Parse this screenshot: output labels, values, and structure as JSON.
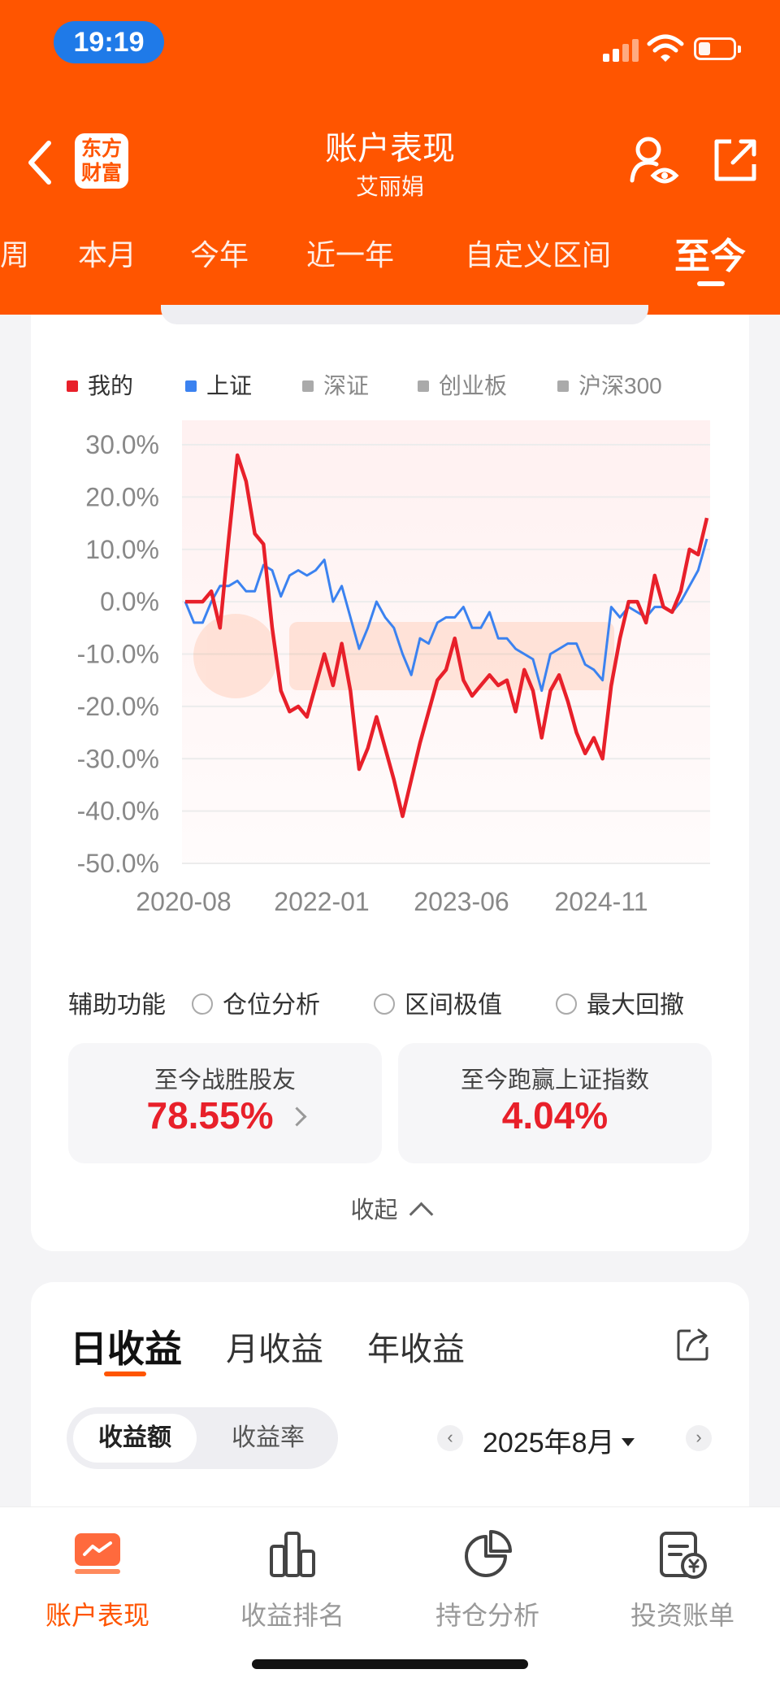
{
  "status_bar": {
    "time": "19:19"
  },
  "header": {
    "logo_line1": "东方",
    "logo_line2": "财富",
    "title": "账户表现",
    "subtitle": "艾丽娟"
  },
  "period_tabs": [
    "周",
    "本月",
    "今年",
    "近一年",
    "自定义区间",
    "至今"
  ],
  "period_tabs_active": "至今",
  "legend": [
    {
      "label": "我的",
      "color": "#e8202a",
      "active": true
    },
    {
      "label": "上证",
      "color": "#3b82f0",
      "active": true
    },
    {
      "label": "深证",
      "color": "#aaaaaa",
      "active": false
    },
    {
      "label": "创业板",
      "color": "#aaaaaa",
      "active": false
    },
    {
      "label": "沪深300",
      "color": "#aaaaaa",
      "active": false
    }
  ],
  "chart_data": {
    "type": "line",
    "y_ticks": [
      "30.0%",
      "20.0%",
      "10.0%",
      "0.0%",
      "-10.0%",
      "-20.0%",
      "-30.0%",
      "-40.0%",
      "-50.0%"
    ],
    "x_ticks": [
      "2020-08",
      "2022-01",
      "2023-06",
      "2024-11"
    ],
    "ylim": [
      -50,
      30
    ],
    "series": [
      {
        "name": "我的",
        "color": "#e8202a",
        "points": [
          [
            0,
            0
          ],
          [
            1,
            0
          ],
          [
            2,
            0
          ],
          [
            3,
            2
          ],
          [
            4,
            -5
          ],
          [
            5,
            12
          ],
          [
            6,
            28
          ],
          [
            7,
            23
          ],
          [
            8,
            13
          ],
          [
            9,
            11
          ],
          [
            10,
            -5
          ],
          [
            11,
            -17
          ],
          [
            12,
            -21
          ],
          [
            13,
            -20
          ],
          [
            14,
            -22
          ],
          [
            15,
            -16
          ],
          [
            16,
            -10
          ],
          [
            17,
            -16
          ],
          [
            18,
            -8
          ],
          [
            19,
            -17
          ],
          [
            20,
            -32
          ],
          [
            21,
            -28
          ],
          [
            22,
            -22
          ],
          [
            23,
            -28
          ],
          [
            24,
            -34
          ],
          [
            25,
            -41
          ],
          [
            26,
            -34
          ],
          [
            27,
            -27
          ],
          [
            28,
            -21
          ],
          [
            29,
            -15
          ],
          [
            30,
            -13
          ],
          [
            31,
            -7
          ],
          [
            32,
            -15
          ],
          [
            33,
            -18
          ],
          [
            34,
            -16
          ],
          [
            35,
            -14
          ],
          [
            36,
            -16
          ],
          [
            37,
            -15
          ],
          [
            38,
            -21
          ],
          [
            39,
            -13
          ],
          [
            40,
            -17
          ],
          [
            41,
            -26
          ],
          [
            42,
            -17
          ],
          [
            43,
            -14
          ],
          [
            44,
            -19
          ],
          [
            45,
            -25
          ],
          [
            46,
            -29
          ],
          [
            47,
            -26
          ],
          [
            48,
            -30
          ],
          [
            49,
            -16
          ],
          [
            50,
            -7
          ],
          [
            51,
            0
          ],
          [
            52,
            0
          ],
          [
            53,
            -4
          ],
          [
            54,
            5
          ],
          [
            55,
            -1
          ],
          [
            56,
            -2
          ],
          [
            57,
            2
          ],
          [
            58,
            10
          ],
          [
            59,
            9
          ],
          [
            60,
            16
          ]
        ]
      },
      {
        "name": "上证",
        "color": "#3b82f0",
        "points": [
          [
            0,
            0
          ],
          [
            1,
            -4
          ],
          [
            2,
            -4
          ],
          [
            3,
            0
          ],
          [
            4,
            3
          ],
          [
            5,
            3
          ],
          [
            6,
            4
          ],
          [
            7,
            2
          ],
          [
            8,
            2
          ],
          [
            9,
            7
          ],
          [
            10,
            6
          ],
          [
            11,
            1
          ],
          [
            12,
            5
          ],
          [
            13,
            6
          ],
          [
            14,
            5
          ],
          [
            15,
            6
          ],
          [
            16,
            8
          ],
          [
            17,
            0
          ],
          [
            18,
            3
          ],
          [
            19,
            -3
          ],
          [
            20,
            -9
          ],
          [
            21,
            -5
          ],
          [
            22,
            0
          ],
          [
            23,
            -3
          ],
          [
            24,
            -5
          ],
          [
            25,
            -10
          ],
          [
            26,
            -14
          ],
          [
            27,
            -7
          ],
          [
            28,
            -8
          ],
          [
            29,
            -4
          ],
          [
            30,
            -3
          ],
          [
            31,
            -3
          ],
          [
            32,
            -1
          ],
          [
            33,
            -5
          ],
          [
            34,
            -5
          ],
          [
            35,
            -2
          ],
          [
            36,
            -7
          ],
          [
            37,
            -7
          ],
          [
            38,
            -9
          ],
          [
            39,
            -10
          ],
          [
            40,
            -11
          ],
          [
            41,
            -17
          ],
          [
            42,
            -10
          ],
          [
            43,
            -9
          ],
          [
            44,
            -8
          ],
          [
            45,
            -8
          ],
          [
            46,
            -12
          ],
          [
            47,
            -13
          ],
          [
            48,
            -15
          ],
          [
            49,
            -1
          ],
          [
            50,
            -3
          ],
          [
            51,
            -1
          ],
          [
            52,
            -2
          ],
          [
            53,
            -3
          ],
          [
            54,
            -1
          ],
          [
            55,
            -1
          ],
          [
            56,
            -2
          ],
          [
            57,
            0
          ],
          [
            58,
            3
          ],
          [
            59,
            6
          ],
          [
            60,
            12
          ]
        ]
      }
    ]
  },
  "aux": {
    "label": "辅助功能",
    "options": [
      "仓位分析",
      "区间极值",
      "最大回撤"
    ]
  },
  "stats": [
    {
      "label": "至今战胜股友",
      "value": "78.55%"
    },
    {
      "label": "至今跑赢上证指数",
      "value": "4.04%"
    }
  ],
  "collapse_label": "收起",
  "earnings": {
    "tabs": [
      "日收益",
      "月收益",
      "年收益"
    ],
    "segment": [
      "收益额",
      "收益率"
    ],
    "month": "2025年8月",
    "prev": "‹",
    "next": "›"
  },
  "bottom_nav": [
    {
      "label": "账户表现",
      "icon": "chart-screen-icon",
      "active": true
    },
    {
      "label": "收益排名",
      "icon": "bar-ranking-icon",
      "active": false
    },
    {
      "label": "持仓分析",
      "icon": "pie-chart-icon",
      "active": false
    },
    {
      "label": "投资账单",
      "icon": "bill-icon",
      "active": false
    }
  ]
}
